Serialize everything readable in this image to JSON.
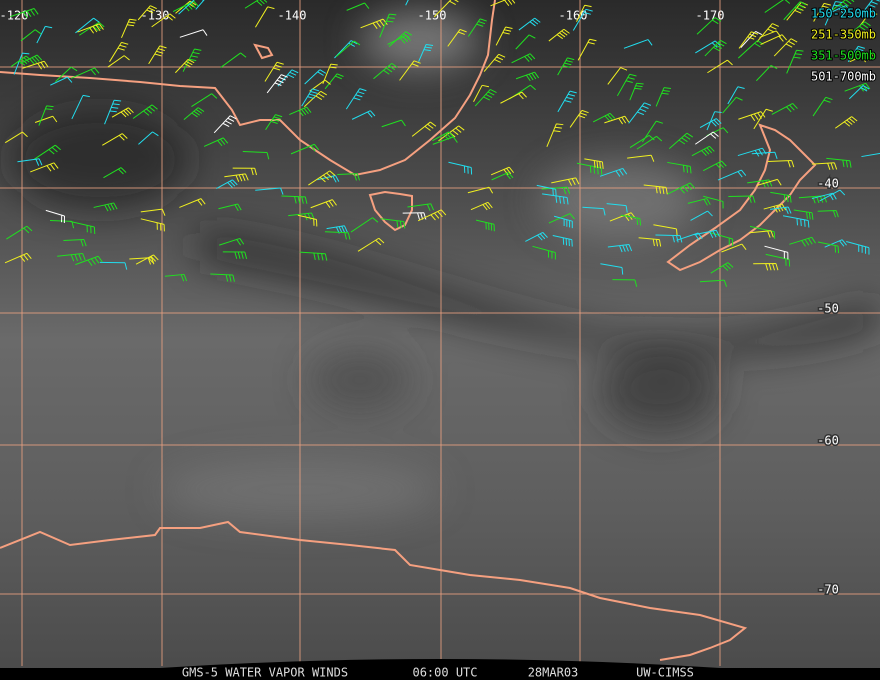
{
  "map": {
    "longitude_labels": [
      "-120",
      "-130",
      "-140",
      "-150",
      "-160",
      "-170"
    ],
    "latitude_labels": [
      "-40",
      "-50",
      "-60",
      "-70"
    ],
    "legend": [
      {
        "label": "150-250mb",
        "color": "#22ddee"
      },
      {
        "label": "251-350mb",
        "color": "#f0f020"
      },
      {
        "label": "351-500mb",
        "color": "#20e020"
      },
      {
        "label": "501-700mb",
        "color": "#ffffff"
      }
    ],
    "footer": [
      "GMS-5 WATER VAPOR WINDS",
      "06:00 UTC",
      "28MAR03",
      "UW-CIMSS"
    ]
  }
}
